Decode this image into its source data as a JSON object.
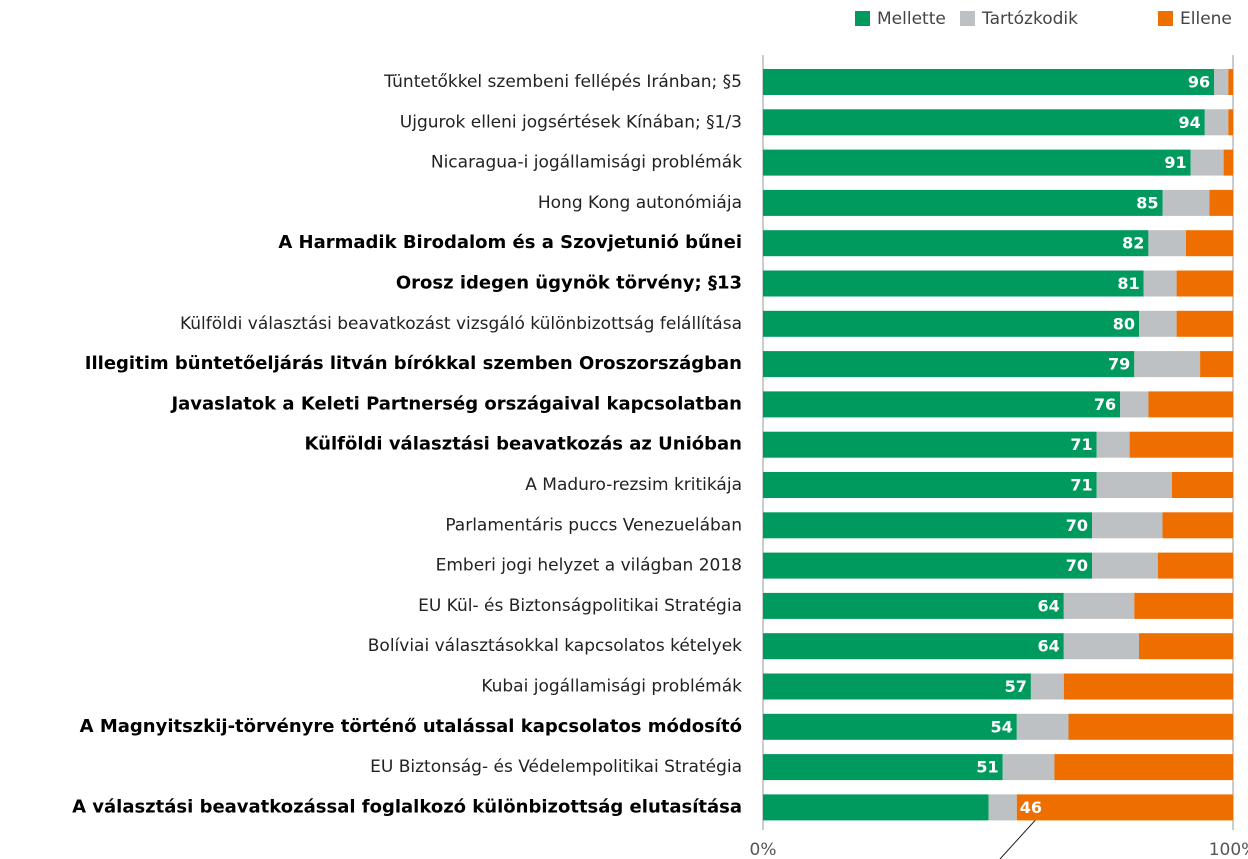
{
  "chart_data": {
    "type": "stacked-barh",
    "categories": [
      "Tüntetőkkel szembeni fellépés Iránban; §5",
      "Ujgurok elleni jogsértések Kínában; §1/3",
      "Nicaragua-i jogállamisági problémák",
      "Hong Kong autonómiája",
      "A Harmadik Birodalom és a Szovjetunió bűnei",
      "Orosz idegen ügynök törvény; §13",
      "Külföldi választási beavatkozást vizsgáló különbizottság felállítása",
      "Illegitim büntetőeljárás litván bírókkal szemben Oroszországban",
      "Javaslatok a Keleti Partnerség országaival kapcsolatban",
      "Külföldi választási beavatkozás az Unióban",
      "A Maduro-rezsim kritikája",
      "Parlamentáris puccs Venezuelában",
      "Emberi jogi helyzet a világban 2018",
      "EU Kül- és Biztonságpolitikai Stratégia",
      "Bolíviai választásokkal kapcsolatos kételyek",
      "Kubai jogállamisági problémák",
      "A Magnyitszkij-törvényre történő utalással kapcsolatos módosító",
      "EU Biztonság- és Védelempolitikai Stratégia",
      "A választási beavatkozással foglalkozó különbizottság elutasítása"
    ],
    "highlight": [
      false,
      false,
      false,
      false,
      true,
      true,
      false,
      true,
      true,
      true,
      false,
      false,
      false,
      false,
      false,
      false,
      true,
      false,
      true
    ],
    "series": [
      {
        "name": "Mellette",
        "color": "#009a5e",
        "values": [
          96,
          94,
          91,
          85,
          82,
          81,
          80,
          79,
          76,
          71,
          71,
          70,
          70,
          64,
          64,
          57,
          54,
          51,
          48
        ],
        "value_labels": [
          "96",
          "94",
          "91",
          "85",
          "82",
          "81",
          "80",
          "79",
          "76",
          "71",
          "71",
          "70",
          "70",
          "64",
          "64",
          "57",
          "54",
          "51",
          null
        ]
      },
      {
        "name": "Tartózkodik",
        "color": "#bdc1c3",
        "values": [
          3,
          5,
          7,
          10,
          8,
          7,
          8,
          14,
          6,
          7,
          16,
          15,
          14,
          15,
          16,
          7,
          11,
          11,
          6
        ]
      },
      {
        "name": "Ellene",
        "color": "#ee6f00",
        "values": [
          1,
          1,
          2,
          5,
          10,
          12,
          12,
          7,
          18,
          22,
          13,
          15,
          16,
          21,
          20,
          36,
          35,
          38,
          46
        ],
        "value_labels": [
          null,
          null,
          null,
          null,
          null,
          null,
          null,
          null,
          null,
          null,
          null,
          null,
          null,
          null,
          null,
          null,
          null,
          null,
          "46"
        ]
      }
    ],
    "xlim": [
      0,
      100
    ],
    "xticks": [
      {
        "value": 0,
        "label": "0%"
      },
      {
        "value": 100,
        "label": "100%"
      }
    ],
    "legend": "top-right"
  }
}
